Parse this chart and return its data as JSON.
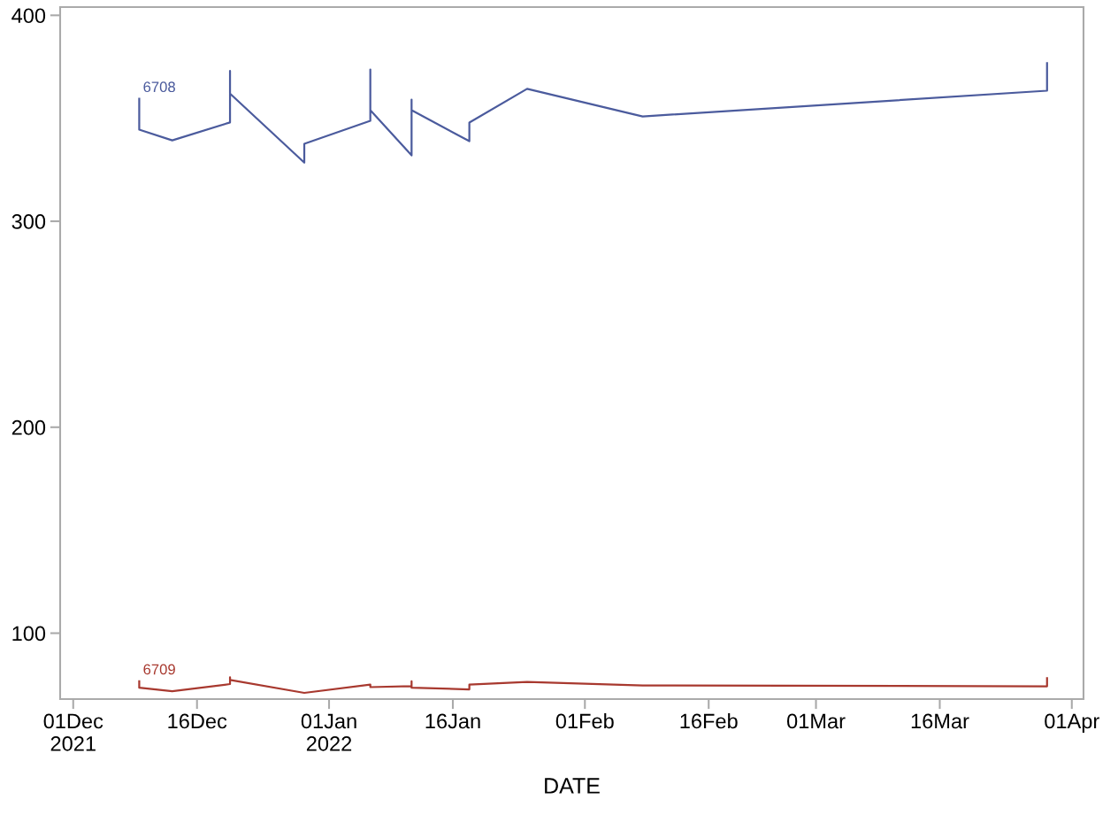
{
  "chart_data": {
    "type": "line",
    "xlabel": "DATE",
    "xlim": [
      "2021-11-29T10:00",
      "2022-04-02T10:00"
    ],
    "ylim": [
      68,
      404
    ],
    "xticks": [
      {
        "value": "2021-12-01",
        "label": "01Dec\n2021"
      },
      {
        "value": "2021-12-16",
        "label": "16Dec"
      },
      {
        "value": "2022-01-01",
        "label": "01Jan\n2022"
      },
      {
        "value": "2022-01-16",
        "label": "16Jan"
      },
      {
        "value": "2022-02-01",
        "label": "01Feb"
      },
      {
        "value": "2022-02-16",
        "label": "16Feb"
      },
      {
        "value": "2022-03-01",
        "label": "01Mar"
      },
      {
        "value": "2022-03-16",
        "label": "16Mar"
      },
      {
        "value": "2022-04-01",
        "label": "01Apr"
      }
    ],
    "yticks": [
      100,
      200,
      300,
      400
    ],
    "grid": false,
    "legend": false,
    "marker": "none",
    "line_style": "solid",
    "series": [
      {
        "name": "6708",
        "color": "#4b5b9d",
        "x": [
          "2021-12-09",
          "2021-12-09",
          "2021-12-13",
          "2021-12-20",
          "2021-12-20",
          "2021-12-20",
          "2021-12-29",
          "2021-12-29",
          "2022-01-06",
          "2022-01-06",
          "2022-01-06",
          "2022-01-11",
          "2022-01-11",
          "2022-01-11",
          "2022-01-18",
          "2022-01-18",
          "2022-01-25",
          "2022-02-08",
          "2022-03-29",
          "2022-03-29"
        ],
        "values": [
          359.5,
          344.5,
          339.3,
          348,
          373,
          362,
          328.5,
          337.6,
          348.8,
          373.7,
          353.9,
          332,
          359.1,
          353.9,
          338.9,
          347.9,
          364.3,
          350.9,
          363.4,
          376.8
        ]
      },
      {
        "name": "6709",
        "color": "#a8392f",
        "x": [
          "2021-12-09",
          "2021-12-09",
          "2021-12-13",
          "2021-12-20",
          "2021-12-20",
          "2021-12-20",
          "2021-12-29",
          "2022-01-06",
          "2022-01-06",
          "2022-01-11",
          "2022-01-11",
          "2022-01-11",
          "2022-01-18",
          "2022-01-18",
          "2022-01-25",
          "2022-02-08",
          "2022-03-29",
          "2022-03-29"
        ],
        "values": [
          76.7,
          73.5,
          71.8,
          75.3,
          78.6,
          77.3,
          71.0,
          75.0,
          73.8,
          74.3,
          76.6,
          73.5,
          72.7,
          75.0,
          76.3,
          74.6,
          74.2,
          78.2
        ]
      }
    ]
  }
}
